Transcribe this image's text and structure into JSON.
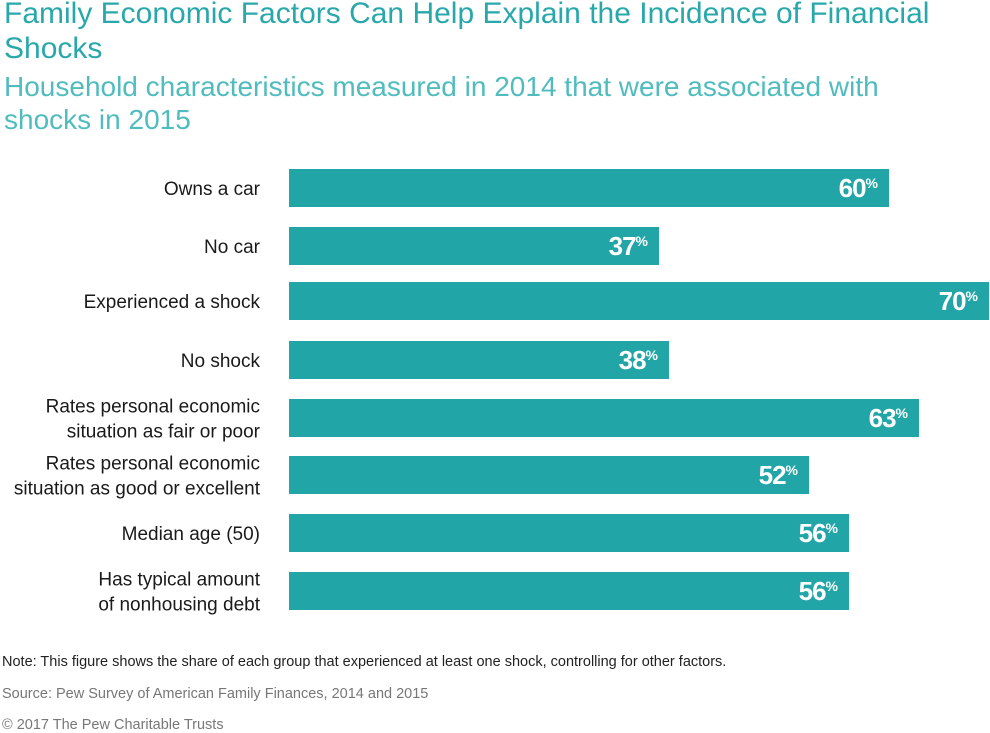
{
  "title": "Family Economic Factors Can Help Explain the Incidence of Financial Shocks",
  "subtitle": "Household characteristics measured in 2014 that were associated with shocks in 2015",
  "note": "Note: This figure shows the share of each group that experienced at least one shock, controlling for other factors.",
  "source": "Source: Pew Survey of American Family Finances, 2014 and 2015",
  "copyright": "© 2017 The Pew Charitable Trusts",
  "colors": {
    "bar": "#22a5a7",
    "title": "#29a8ab",
    "subtitle": "#50bcbe",
    "label": "#1a1a1a",
    "value": "#ffffff"
  },
  "chart_data": {
    "type": "bar",
    "orientation": "horizontal",
    "categories": [
      [
        "Owns a car"
      ],
      [
        "No car"
      ],
      [
        "Experienced a shock"
      ],
      [
        "No shock"
      ],
      [
        "Rates personal economic",
        "situation as fair or poor"
      ],
      [
        "Rates personal economic",
        "situation as good or excellent"
      ],
      [
        "Median age (50)"
      ],
      [
        "Has typical amount",
        "of nonhousing debt"
      ]
    ],
    "values": [
      60,
      37,
      70,
      38,
      63,
      52,
      56,
      56
    ],
    "value_suffix": "%",
    "xlim": [
      0,
      70
    ],
    "grid": false,
    "legend": "none"
  }
}
